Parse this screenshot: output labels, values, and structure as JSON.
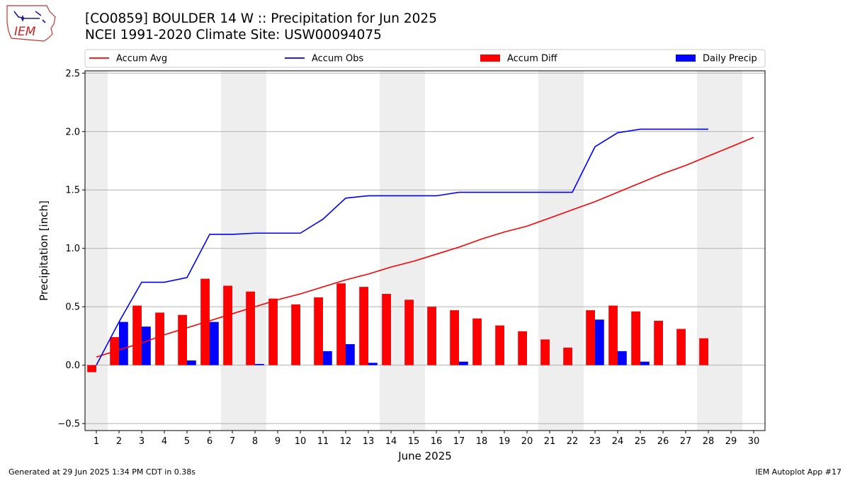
{
  "header": {
    "title_line1": "[CO0859] BOULDER 14 W :: Precipitation for Jun 2025",
    "title_line2": "NCEI 1991-2020 Climate Site: USW00094075",
    "logo_text": "IEM"
  },
  "footer": {
    "generated": "Generated at 29 Jun 2025 1:34 PM CDT in 0.38s",
    "app": "IEM Autoplot App #17"
  },
  "chart_data": {
    "type": "bar",
    "xlabel": "June 2025",
    "ylabel": "Precipitation [inch]",
    "ylim": [
      -0.56,
      2.52
    ],
    "xlim": [
      0.5,
      30.5
    ],
    "yticks": [
      -0.5,
      0.0,
      0.5,
      1.0,
      1.5,
      2.0,
      2.5
    ],
    "yticklabels": [
      "−0.5",
      "0.0",
      "0.5",
      "1.0",
      "1.5",
      "2.0",
      "2.5"
    ],
    "x": [
      1,
      2,
      3,
      4,
      5,
      6,
      7,
      8,
      9,
      10,
      11,
      12,
      13,
      14,
      15,
      16,
      17,
      18,
      19,
      20,
      21,
      22,
      23,
      24,
      25,
      26,
      27,
      28,
      29,
      30
    ],
    "grid": "horizontal",
    "legend_position": "top",
    "weekend_shading": [
      [
        0.5,
        1.5
      ],
      [
        6.5,
        8.5
      ],
      [
        13.5,
        15.5
      ],
      [
        20.5,
        22.5
      ],
      [
        27.5,
        29.5
      ]
    ],
    "series": [
      {
        "name": "Accum Avg",
        "kind": "line",
        "color": "#ff0000",
        "x": [
          1,
          2,
          3,
          4,
          5,
          6,
          7,
          8,
          9,
          10,
          11,
          12,
          13,
          14,
          15,
          16,
          17,
          18,
          19,
          20,
          21,
          22,
          23,
          24,
          25,
          26,
          27,
          28,
          29,
          30
        ],
        "values": [
          0.07,
          0.13,
          0.19,
          0.26,
          0.32,
          0.38,
          0.44,
          0.5,
          0.56,
          0.61,
          0.67,
          0.73,
          0.78,
          0.84,
          0.89,
          0.95,
          1.01,
          1.08,
          1.14,
          1.19,
          1.26,
          1.33,
          1.4,
          1.48,
          1.56,
          1.64,
          1.71,
          1.79,
          1.87,
          1.95
        ]
      },
      {
        "name": "Accum Obs",
        "kind": "line",
        "color": "#0000ff",
        "x": [
          1,
          2,
          3,
          4,
          5,
          6,
          7,
          8,
          9,
          10,
          11,
          12,
          13,
          14,
          15,
          16,
          17,
          18,
          19,
          20,
          21,
          22,
          23,
          24,
          25,
          26,
          27,
          28
        ],
        "values": [
          0.0,
          0.37,
          0.71,
          0.71,
          0.75,
          1.12,
          1.12,
          1.13,
          1.13,
          1.13,
          1.25,
          1.43,
          1.45,
          1.45,
          1.45,
          1.45,
          1.48,
          1.48,
          1.48,
          1.48,
          1.48,
          1.48,
          1.87,
          1.99,
          2.02,
          2.02,
          2.02,
          2.02
        ]
      },
      {
        "name": "Accum Diff",
        "kind": "bar",
        "color": "#ff0000",
        "x": [
          1,
          2,
          3,
          4,
          5,
          6,
          7,
          8,
          9,
          10,
          11,
          12,
          13,
          14,
          15,
          16,
          17,
          18,
          19,
          20,
          21,
          22,
          23,
          24,
          25,
          26,
          27,
          28
        ],
        "values": [
          -0.06,
          0.24,
          0.51,
          0.45,
          0.43,
          0.74,
          0.68,
          0.63,
          0.57,
          0.52,
          0.58,
          0.7,
          0.67,
          0.61,
          0.56,
          0.5,
          0.47,
          0.4,
          0.34,
          0.29,
          0.22,
          0.15,
          0.47,
          0.51,
          0.46,
          0.38,
          0.31,
          0.23
        ]
      },
      {
        "name": "Daily Precip",
        "kind": "bar",
        "color": "#0000ff",
        "x": [
          1,
          2,
          3,
          4,
          5,
          6,
          7,
          8,
          9,
          10,
          11,
          12,
          13,
          14,
          15,
          16,
          17,
          18,
          19,
          20,
          21,
          22,
          23,
          24,
          25,
          26,
          27,
          28
        ],
        "values": [
          0.0,
          0.37,
          0.33,
          0.0,
          0.04,
          0.37,
          0.0,
          0.01,
          0.0,
          0.0,
          0.12,
          0.18,
          0.02,
          0.0,
          0.0,
          0.0,
          0.03,
          0.0,
          0.0,
          0.0,
          0.0,
          0.0,
          0.39,
          0.12,
          0.03,
          0.0,
          0.0,
          0.0
        ]
      }
    ]
  }
}
